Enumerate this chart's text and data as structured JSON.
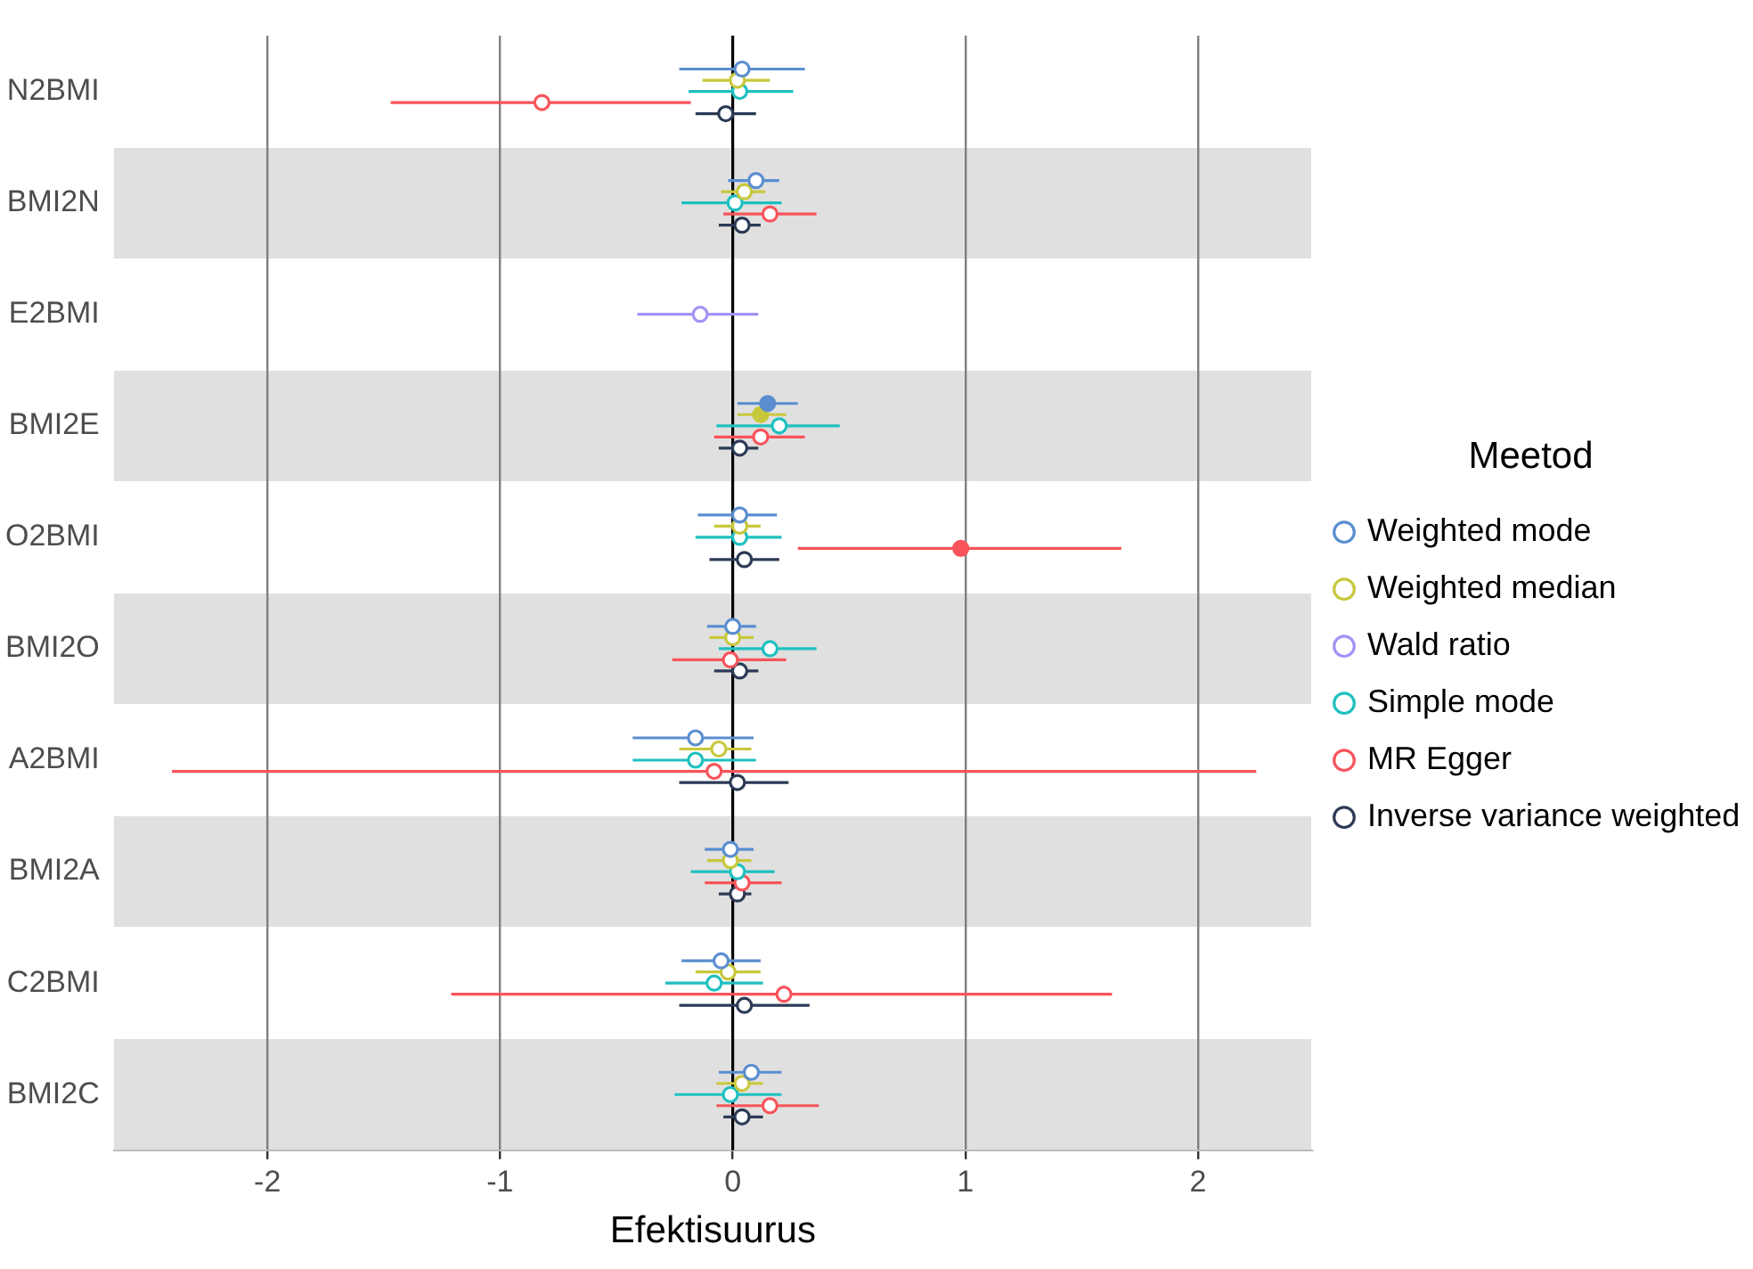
{
  "chart_data": {
    "type": "scatter",
    "orientation": "horizontal",
    "xlabel": "Efektisuurus",
    "legend_title": "Meetod",
    "legend": "right",
    "grid": "x",
    "marker": "circle",
    "categories": [
      "N2BMI",
      "BMI2N",
      "E2BMI",
      "BMI2E",
      "O2BMI",
      "BMI2O",
      "A2BMI",
      "BMI2A",
      "C2BMI",
      "BMI2C"
    ],
    "xlim": [
      -2.66,
      2.49
    ],
    "xticks": [
      -2,
      -1,
      0,
      1,
      2
    ],
    "ref_lines": [
      {
        "axis": "x",
        "value": 0,
        "color": "#000000",
        "line_style": "solid"
      }
    ],
    "series": [
      {
        "name": "Weighted mode",
        "color": "#5a8ed0",
        "values": [
          0.04,
          0.1,
          null,
          0.15,
          0.03,
          0.0,
          -0.16,
          -0.01,
          -0.05,
          0.08
        ],
        "errors": [
          [
            -0.23,
            0.31
          ],
          [
            -0.02,
            0.2
          ],
          null,
          [
            0.02,
            0.28
          ],
          [
            -0.15,
            0.19
          ],
          [
            -0.11,
            0.1
          ],
          [
            -0.43,
            0.09
          ],
          [
            -0.12,
            0.09
          ],
          [
            -0.22,
            0.12
          ],
          [
            -0.06,
            0.21
          ]
        ],
        "colors": [
          "#ffffff",
          "#ffffff",
          null,
          "#5a8ed0",
          "#ffffff",
          "#ffffff",
          "#ffffff",
          "#ffffff",
          "#ffffff",
          "#ffffff"
        ]
      },
      {
        "name": "Weighted median",
        "color": "#c8c83c",
        "values": [
          0.02,
          0.05,
          null,
          0.12,
          0.03,
          0.0,
          -0.06,
          -0.01,
          -0.02,
          0.04
        ],
        "errors": [
          [
            -0.13,
            0.16
          ],
          [
            -0.05,
            0.14
          ],
          null,
          [
            0.02,
            0.23
          ],
          [
            -0.08,
            0.12
          ],
          [
            -0.1,
            0.09
          ],
          [
            -0.23,
            0.08
          ],
          [
            -0.11,
            0.08
          ],
          [
            -0.16,
            0.12
          ],
          [
            -0.07,
            0.13
          ]
        ],
        "colors": [
          "#ffffff",
          "#ffffff",
          null,
          "#c8c83c",
          "#ffffff",
          "#ffffff",
          "#ffffff",
          "#ffffff",
          "#ffffff",
          "#ffffff"
        ]
      },
      {
        "name": "Wald ratio",
        "color": "#a393f5",
        "values": [
          null,
          null,
          -0.14,
          null,
          null,
          null,
          null,
          null,
          null,
          null
        ],
        "errors": [
          null,
          null,
          [
            -0.41,
            0.11
          ],
          null,
          null,
          null,
          null,
          null,
          null,
          null
        ],
        "colors": [
          null,
          null,
          "#ffffff",
          null,
          null,
          null,
          null,
          null,
          null,
          null
        ]
      },
      {
        "name": "Simple mode",
        "color": "#1fc0c0",
        "values": [
          0.03,
          0.01,
          null,
          0.2,
          0.03,
          0.16,
          -0.16,
          0.02,
          -0.08,
          -0.01
        ],
        "errors": [
          [
            -0.19,
            0.26
          ],
          [
            -0.22,
            0.21
          ],
          null,
          [
            -0.07,
            0.46
          ],
          [
            -0.16,
            0.21
          ],
          [
            -0.06,
            0.36
          ],
          [
            -0.43,
            0.1
          ],
          [
            -0.18,
            0.18
          ],
          [
            -0.29,
            0.13
          ],
          [
            -0.25,
            0.21
          ]
        ],
        "colors": [
          "#ffffff",
          "#ffffff",
          null,
          "#ffffff",
          "#ffffff",
          "#ffffff",
          "#ffffff",
          "#ffffff",
          "#ffffff",
          "#ffffff"
        ]
      },
      {
        "name": "MR Egger",
        "color": "#f8545a",
        "values": [
          -0.82,
          0.16,
          null,
          0.12,
          0.98,
          -0.01,
          -0.08,
          0.04,
          0.22,
          0.16
        ],
        "errors": [
          [
            -1.47,
            -0.18
          ],
          [
            -0.04,
            0.36
          ],
          null,
          [
            -0.08,
            0.31
          ],
          [
            0.28,
            1.67
          ],
          [
            -0.26,
            0.23
          ],
          [
            -2.41,
            2.25
          ],
          [
            -0.12,
            0.21
          ],
          [
            -1.21,
            1.63
          ],
          [
            -0.07,
            0.37
          ]
        ],
        "colors": [
          "#ffffff",
          "#ffffff",
          null,
          "#ffffff",
          "#f8545a",
          "#ffffff",
          "#ffffff",
          "#ffffff",
          "#ffffff",
          "#ffffff"
        ]
      },
      {
        "name": "Inverse variance weighted",
        "color": "#2c3a55",
        "values": [
          -0.03,
          0.04,
          null,
          0.03,
          0.05,
          0.03,
          0.02,
          0.02,
          0.05,
          0.04
        ],
        "errors": [
          [
            -0.16,
            0.1
          ],
          [
            -0.06,
            0.12
          ],
          null,
          [
            -0.06,
            0.11
          ],
          [
            -0.1,
            0.2
          ],
          [
            -0.08,
            0.11
          ],
          [
            -0.23,
            0.24
          ],
          [
            -0.06,
            0.08
          ],
          [
            -0.23,
            0.33
          ],
          [
            -0.04,
            0.13
          ]
        ],
        "colors": [
          "#ffffff",
          "#ffffff",
          null,
          "#ffffff",
          "#ffffff",
          "#ffffff",
          "#ffffff",
          "#ffffff",
          "#ffffff",
          "#ffffff"
        ]
      }
    ]
  }
}
